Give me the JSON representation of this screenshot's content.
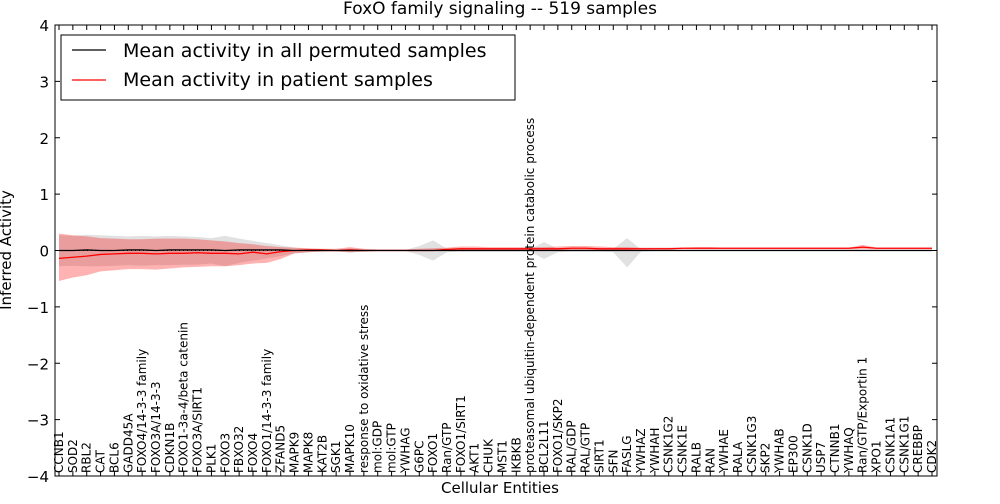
{
  "chart_data": {
    "type": "line",
    "title": "FoxO family signaling -- 519 samples",
    "xlabel": "Cellular Entities",
    "ylabel": "Inferred Activity",
    "ylim": [
      -4,
      4
    ],
    "yticks": [
      -4,
      -3,
      -2,
      -1,
      0,
      1,
      2,
      3,
      4
    ],
    "ytick_labels": [
      "−4",
      "−3",
      "−2",
      "−1",
      "0",
      "1",
      "2",
      "3",
      "4"
    ],
    "legend": {
      "position": "top-left",
      "entries": [
        {
          "label": "Mean activity in all permuted samples",
          "color": "#000000"
        },
        {
          "label": "Mean activity in patient samples",
          "color": "#ff0000"
        }
      ]
    },
    "categories": [
      "CCNB1",
      "SOD2",
      "RBL2",
      "CAT",
      "BCL6",
      "GADD45A",
      "FOXO4/14-3-3 family",
      "FOXO3A/14-3-3",
      "CDKN1B",
      "FOXO1-3a-4/beta catenin",
      "FOXO3A/SIRT1",
      "PLK1",
      "FOXO3",
      "FBXO32",
      "FOXO4",
      "FOXO1/14-3-3 family",
      "ZFAND5",
      "MAPK9",
      "MAPK8",
      "KAT2B",
      "SGK1",
      "MAPK10",
      "response to oxidative stress",
      "mol:GDP",
      "mol:GTP",
      "YWHAG",
      "G6PC",
      "FOXO1",
      "Ran/GTP",
      "FOXO1/SIRT1",
      "AKT1",
      "CHUK",
      "MST1",
      "IKBKB",
      "proteasomal ubiquitin-dependent protein catabolic process",
      "BCL2L11",
      "FOXO1/SKP2",
      "RAL/GDP",
      "RAL/GTP",
      "SIRT1",
      "SFN",
      "FASLG",
      "YWHAZ",
      "YWHAH",
      "CSNK1G2",
      "CSNK1E",
      "RALB",
      "RAN",
      "YWHAE",
      "RALA",
      "CSNK1G3",
      "SKP2",
      "YWHAB",
      "EP300",
      "CSNK1D",
      "USP7",
      "CTNNB1",
      "YWHAQ",
      "Ran/GTP/Exportin 1",
      "XPO1",
      "CSNK1A1",
      "CSNK1G1",
      "CREBBP",
      "CDK2"
    ],
    "series": [
      {
        "name": "Mean activity in all permuted samples",
        "color": "#000000",
        "values": [
          0.0,
          0.0,
          0.01,
          0.0,
          0.0,
          0.01,
          0.01,
          0.0,
          0.01,
          0.01,
          0.01,
          0.01,
          0.0,
          0.01,
          0.01,
          0.01,
          0.01,
          0.0,
          0.0,
          0.0,
          0.0,
          0.0,
          0.0,
          0.0,
          0.0,
          0.0,
          0.0,
          0.0,
          0.0,
          0.0,
          0.0,
          0.0,
          0.0,
          0.0,
          0.0,
          0.0,
          0.0,
          0.0,
          0.0,
          0.0,
          0.0,
          0.0,
          0.0,
          0.0,
          0.0,
          0.0,
          0.0,
          0.0,
          0.0,
          0.0,
          0.0,
          0.0,
          0.0,
          0.0,
          0.0,
          0.0,
          0.0,
          0.0,
          0.0,
          0.0,
          0.0,
          0.0,
          0.0,
          0.0
        ],
        "band_low": [
          -0.28,
          -0.27,
          -0.28,
          -0.28,
          -0.27,
          -0.26,
          -0.27,
          -0.26,
          -0.26,
          -0.25,
          -0.25,
          -0.23,
          -0.28,
          -0.22,
          -0.18,
          -0.14,
          -0.1,
          -0.05,
          -0.03,
          -0.02,
          -0.01,
          -0.04,
          -0.02,
          -0.01,
          -0.01,
          -0.01,
          -0.08,
          -0.18,
          -0.03,
          -0.02,
          -0.02,
          -0.02,
          -0.02,
          -0.02,
          -0.02,
          -0.15,
          -0.03,
          -0.02,
          -0.02,
          -0.02,
          -0.03,
          -0.3,
          -0.02,
          -0.01,
          -0.01,
          -0.01,
          -0.01,
          -0.01,
          -0.01,
          -0.01,
          -0.01,
          -0.01,
          -0.01,
          -0.01,
          -0.01,
          -0.01,
          -0.01,
          -0.01,
          -0.01,
          -0.01,
          -0.01,
          -0.01,
          -0.01,
          -0.01
        ],
        "band_high": [
          0.27,
          0.26,
          0.28,
          0.27,
          0.26,
          0.25,
          0.26,
          0.25,
          0.26,
          0.25,
          0.24,
          0.22,
          0.26,
          0.21,
          0.17,
          0.13,
          0.09,
          0.05,
          0.03,
          0.02,
          0.01,
          0.04,
          0.02,
          0.01,
          0.01,
          0.01,
          0.08,
          0.18,
          0.03,
          0.02,
          0.02,
          0.02,
          0.02,
          0.02,
          0.02,
          0.15,
          0.03,
          0.02,
          0.02,
          0.02,
          0.03,
          0.22,
          0.02,
          0.01,
          0.01,
          0.01,
          0.01,
          0.01,
          0.01,
          0.01,
          0.01,
          0.01,
          0.01,
          0.01,
          0.01,
          0.01,
          0.01,
          0.01,
          0.01,
          0.01,
          0.01,
          0.01,
          0.01,
          0.01
        ]
      },
      {
        "name": "Mean activity in patient samples",
        "color": "#ff0000",
        "values": [
          -0.14,
          -0.12,
          -0.1,
          -0.07,
          -0.06,
          -0.05,
          -0.05,
          -0.06,
          -0.05,
          -0.05,
          -0.04,
          -0.05,
          -0.05,
          -0.06,
          -0.03,
          -0.06,
          -0.02,
          0.0,
          0.01,
          0.01,
          0.0,
          0.01,
          0.0,
          0.0,
          0.0,
          0.0,
          0.0,
          0.0,
          0.02,
          0.03,
          0.03,
          0.03,
          0.03,
          0.03,
          0.03,
          0.03,
          0.03,
          0.04,
          0.04,
          0.03,
          0.03,
          0.03,
          0.03,
          0.03,
          0.03,
          0.04,
          0.04,
          0.04,
          0.04,
          0.04,
          0.04,
          0.04,
          0.04,
          0.04,
          0.04,
          0.04,
          0.04,
          0.04,
          0.06,
          0.04,
          0.04,
          0.04,
          0.04,
          0.04
        ],
        "band_low": [
          -0.54,
          -0.48,
          -0.44,
          -0.37,
          -0.35,
          -0.33,
          -0.33,
          -0.34,
          -0.32,
          -0.3,
          -0.29,
          -0.28,
          -0.28,
          -0.26,
          -0.23,
          -0.22,
          -0.15,
          -0.05,
          -0.03,
          -0.02,
          -0.02,
          -0.03,
          -0.02,
          -0.01,
          -0.01,
          -0.01,
          -0.01,
          -0.01,
          -0.01,
          0.0,
          0.0,
          0.0,
          0.0,
          0.0,
          0.0,
          0.0,
          0.0,
          0.0,
          0.01,
          0.01,
          0.01,
          0.01,
          0.02,
          0.02,
          0.02,
          0.02,
          0.02,
          0.02,
          0.02,
          0.02,
          0.02,
          0.02,
          0.02,
          0.02,
          0.02,
          0.02,
          0.02,
          0.02,
          0.02,
          0.02,
          0.02,
          0.02,
          0.02,
          0.02
        ],
        "band_high": [
          0.3,
          0.27,
          0.25,
          0.22,
          0.21,
          0.2,
          0.2,
          0.21,
          0.21,
          0.21,
          0.2,
          0.18,
          0.16,
          0.13,
          0.11,
          0.08,
          0.06,
          0.05,
          0.04,
          0.03,
          0.03,
          0.06,
          0.03,
          0.02,
          0.02,
          0.02,
          0.03,
          0.04,
          0.05,
          0.07,
          0.07,
          0.06,
          0.06,
          0.06,
          0.06,
          0.06,
          0.07,
          0.08,
          0.08,
          0.07,
          0.06,
          0.06,
          0.05,
          0.05,
          0.05,
          0.05,
          0.06,
          0.06,
          0.05,
          0.05,
          0.05,
          0.05,
          0.05,
          0.05,
          0.05,
          0.05,
          0.05,
          0.05,
          0.1,
          0.05,
          0.05,
          0.05,
          0.05,
          0.05
        ]
      }
    ],
    "reference_line": {
      "y": 0,
      "style": "dotted"
    }
  }
}
